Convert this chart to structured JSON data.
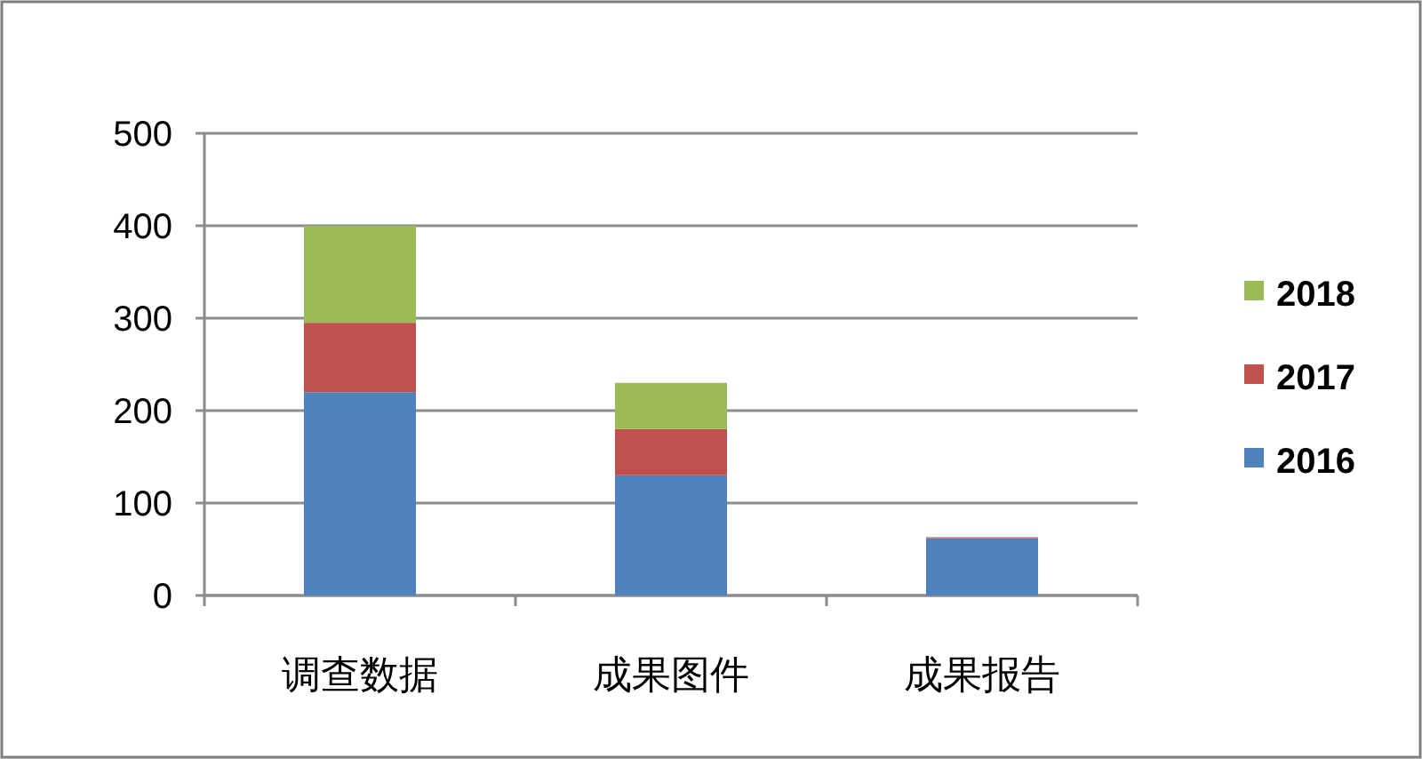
{
  "chart_data": {
    "type": "bar",
    "stacked": true,
    "categories": [
      "调查数据",
      "成果图件",
      "成果报告"
    ],
    "series": [
      {
        "name": "2016",
        "color": "#4f81bd",
        "values": [
          220,
          130,
          62
        ]
      },
      {
        "name": "2017",
        "color": "#c0504d",
        "values": [
          75,
          50,
          1
        ]
      },
      {
        "name": "2018",
        "color": "#9bbb59",
        "values": [
          105,
          50,
          0
        ]
      }
    ],
    "ylim": [
      0,
      500
    ],
    "yticks": [
      0,
      100,
      200,
      300,
      400,
      500
    ],
    "grid": "y",
    "legend": "right"
  }
}
